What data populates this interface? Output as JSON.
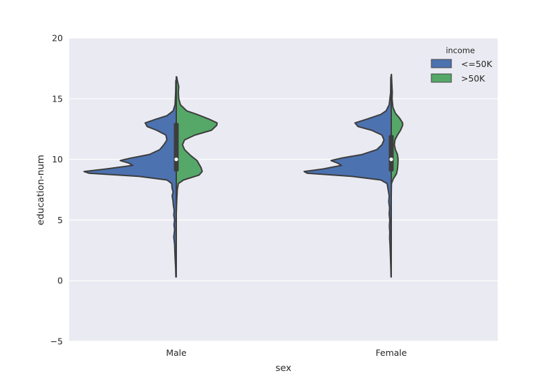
{
  "chart_data": {
    "type": "violin",
    "xlabel": "sex",
    "ylabel": "education-num",
    "categories": [
      "Male",
      "Female"
    ],
    "ylim": [
      -5,
      20
    ],
    "yticks": [
      -5,
      0,
      5,
      10,
      15,
      20
    ],
    "grid": true,
    "split": true,
    "legend": {
      "title": "income",
      "placement": "top-right",
      "entries": [
        "<=50K",
        ">50K"
      ]
    },
    "series": [
      {
        "name": "<=50K",
        "color": "#4C72B0",
        "side": "left",
        "violins": [
          {
            "category": "Male",
            "outline": [
              [
                0.3,
                0.02
              ],
              [
                1.0,
                0.03
              ],
              [
                2.0,
                0.06
              ],
              [
                3.0,
                0.08
              ],
              [
                3.6,
                0.12
              ],
              [
                4.2,
                0.08
              ],
              [
                4.6,
                0.11
              ],
              [
                5.0,
                0.08
              ],
              [
                5.4,
                0.12
              ],
              [
                5.8,
                0.1
              ],
              [
                6.2,
                0.14
              ],
              [
                6.6,
                0.16
              ],
              [
                7.0,
                0.2
              ],
              [
                7.3,
                0.15
              ],
              [
                7.6,
                0.2
              ],
              [
                8.0,
                0.22
              ],
              [
                8.3,
                0.45
              ],
              [
                8.6,
                1.8
              ],
              [
                8.85,
                4.2
              ],
              [
                9.0,
                4.45
              ],
              [
                9.2,
                3.4
              ],
              [
                9.5,
                2.1
              ],
              [
                9.7,
                2.3
              ],
              [
                9.9,
                2.7
              ],
              [
                10.1,
                2.2
              ],
              [
                10.4,
                1.3
              ],
              [
                10.8,
                0.8
              ],
              [
                11.2,
                0.6
              ],
              [
                11.6,
                0.45
              ],
              [
                12.0,
                0.5
              ],
              [
                12.4,
                0.95
              ],
              [
                12.7,
                1.4
              ],
              [
                13.0,
                1.5
              ],
              [
                13.3,
                1.0
              ],
              [
                13.6,
                0.45
              ],
              [
                14.0,
                0.15
              ],
              [
                14.5,
                0.06
              ],
              [
                15.5,
                0.03
              ],
              [
                16.5,
                0.02
              ]
            ],
            "median": 10,
            "quartiles": [
              9,
              13
            ]
          },
          {
            "category": "Female",
            "outline": [
              [
                0.3,
                0.01
              ],
              [
                1.0,
                0.02
              ],
              [
                2.0,
                0.04
              ],
              [
                3.0,
                0.06
              ],
              [
                3.5,
                0.08
              ],
              [
                4.0,
                0.07
              ],
              [
                4.5,
                0.09
              ],
              [
                5.0,
                0.07
              ],
              [
                5.5,
                0.1
              ],
              [
                6.0,
                0.08
              ],
              [
                6.5,
                0.12
              ],
              [
                7.0,
                0.1
              ],
              [
                7.5,
                0.15
              ],
              [
                8.0,
                0.2
              ],
              [
                8.3,
                0.5
              ],
              [
                8.6,
                1.9
              ],
              [
                8.85,
                4.05
              ],
              [
                9.0,
                4.2
              ],
              [
                9.2,
                3.3
              ],
              [
                9.5,
                2.4
              ],
              [
                9.7,
                2.6
              ],
              [
                9.9,
                2.9
              ],
              [
                10.1,
                2.4
              ],
              [
                10.4,
                1.4
              ],
              [
                10.8,
                0.7
              ],
              [
                11.2,
                0.45
              ],
              [
                11.6,
                0.35
              ],
              [
                12.0,
                0.45
              ],
              [
                12.4,
                0.95
              ],
              [
                12.7,
                1.6
              ],
              [
                13.0,
                1.75
              ],
              [
                13.3,
                1.2
              ],
              [
                13.7,
                0.5
              ],
              [
                14.0,
                0.25
              ],
              [
                14.5,
                0.1
              ],
              [
                15.5,
                0.03
              ],
              [
                16.8,
                0.02
              ]
            ],
            "median": 10,
            "quartiles": [
              9,
              12
            ]
          }
        ]
      },
      {
        "name": ">50K",
        "color": "#55A868",
        "side": "right",
        "violins": [
          {
            "category": "Male",
            "outline": [
              [
                5.5,
                0.0
              ],
              [
                6.5,
                0.02
              ],
              [
                7.5,
                0.05
              ],
              [
                8.0,
                0.1
              ],
              [
                8.3,
                0.35
              ],
              [
                8.7,
                1.1
              ],
              [
                9.0,
                1.25
              ],
              [
                9.3,
                1.2
              ],
              [
                9.6,
                1.1
              ],
              [
                9.9,
                1.0
              ],
              [
                10.3,
                0.7
              ],
              [
                10.8,
                0.4
              ],
              [
                11.2,
                0.3
              ],
              [
                11.6,
                0.4
              ],
              [
                12.0,
                0.9
              ],
              [
                12.4,
                1.7
              ],
              [
                12.8,
                1.95
              ],
              [
                13.0,
                1.97
              ],
              [
                13.3,
                1.6
              ],
              [
                13.7,
                1.0
              ],
              [
                14.0,
                0.5
              ],
              [
                14.5,
                0.2
              ],
              [
                15.0,
                0.12
              ],
              [
                15.5,
                0.1
              ],
              [
                16.0,
                0.12
              ],
              [
                16.5,
                0.05
              ],
              [
                16.8,
                0.02
              ]
            ]
          },
          {
            "category": "Female",
            "outline": [
              [
                7.0,
                0.0
              ],
              [
                8.0,
                0.01
              ],
              [
                8.4,
                0.1
              ],
              [
                8.8,
                0.25
              ],
              [
                9.2,
                0.3
              ],
              [
                9.6,
                0.32
              ],
              [
                10.0,
                0.33
              ],
              [
                10.4,
                0.3
              ],
              [
                10.8,
                0.2
              ],
              [
                11.2,
                0.15
              ],
              [
                11.6,
                0.18
              ],
              [
                12.0,
                0.3
              ],
              [
                12.4,
                0.45
              ],
              [
                12.8,
                0.55
              ],
              [
                13.0,
                0.55
              ],
              [
                13.4,
                0.4
              ],
              [
                13.8,
                0.2
              ],
              [
                14.3,
                0.08
              ],
              [
                15.0,
                0.04
              ],
              [
                15.5,
                0.05
              ],
              [
                16.2,
                0.03
              ],
              [
                17.0,
                0.01
              ]
            ]
          }
        ]
      }
    ]
  }
}
